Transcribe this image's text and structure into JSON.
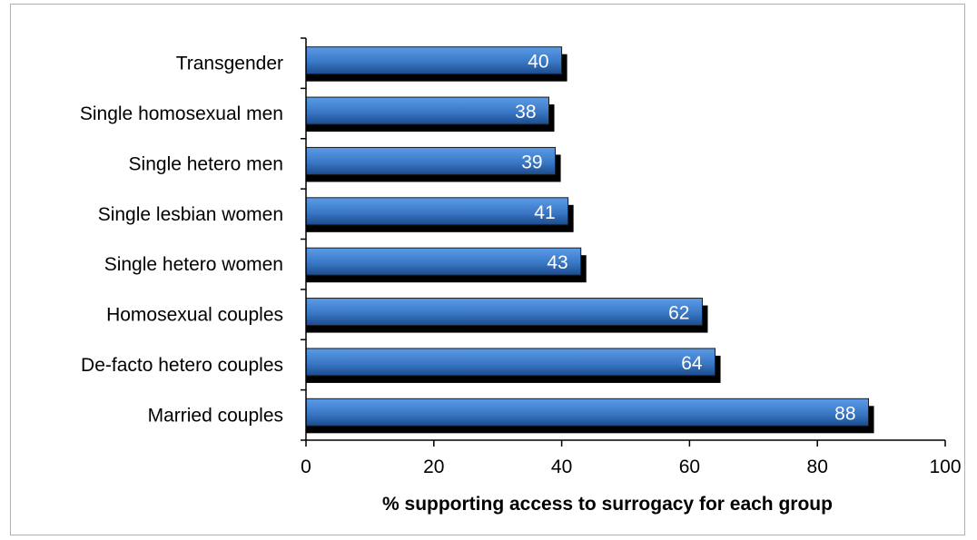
{
  "chart_data": {
    "type": "bar",
    "orientation": "horizontal",
    "categories": [
      "Transgender",
      "Single homosexual men",
      "Single hetero men",
      "Single lesbian women",
      "Single hetero women",
      "Homosexual couples",
      "De-facto hetero couples",
      "Married couples"
    ],
    "values": [
      40,
      38,
      39,
      41,
      43,
      62,
      64,
      88
    ],
    "data_labels": [
      "40",
      "38",
      "39",
      "41",
      "43",
      "62",
      "64",
      "88"
    ],
    "xlabel": "% supporting access to surrogacy for each group",
    "ylabel": "",
    "xlim": [
      0,
      100
    ],
    "x_ticks": [
      "0",
      "20",
      "40",
      "60",
      "80",
      "100"
    ],
    "grid": false,
    "legend": "none",
    "colors": {
      "bar_top": "#4f8fd9",
      "bar_bottom": "#1c4b8c",
      "bar_shadow": "#000000",
      "axis": "#000000",
      "label_text": "#ffffff"
    }
  }
}
